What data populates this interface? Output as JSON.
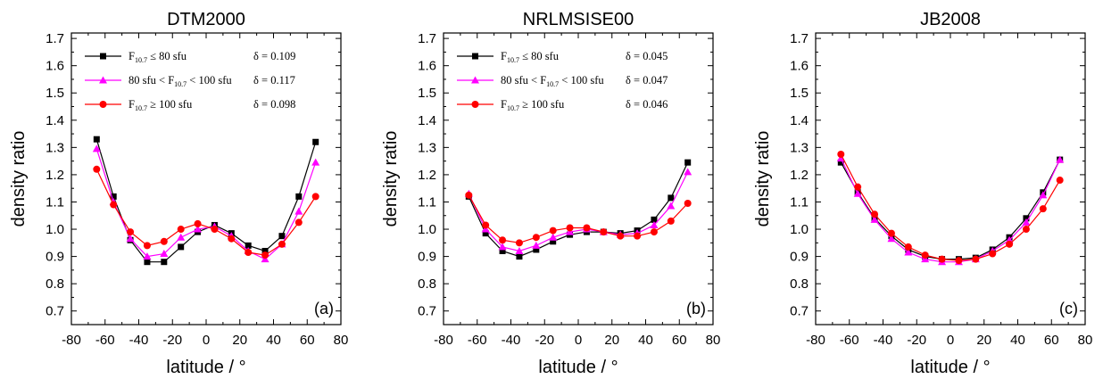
{
  "chart_data": [
    {
      "type": "line",
      "title": "DTM2000",
      "panel_label": "(a)",
      "xlabel": "latitude / °",
      "ylabel": "density ratio",
      "xlim": [
        -80,
        80
      ],
      "ylim": [
        0.65,
        1.72
      ],
      "xticks": [
        -80,
        -60,
        -40,
        -20,
        0,
        20,
        40,
        60,
        80
      ],
      "yticks": [
        0.7,
        0.8,
        0.9,
        1.0,
        1.1,
        1.2,
        1.3,
        1.4,
        1.5,
        1.6,
        1.7
      ],
      "x": [
        -65,
        -55,
        -45,
        -35,
        -25,
        -15,
        -5,
        5,
        15,
        25,
        35,
        45,
        55,
        65
      ],
      "series": [
        {
          "label_parts": [
            "F",
            "10.7",
            " ≤ 80 sfu"
          ],
          "delta": "δ = 0.109",
          "color": "#000000",
          "marker": "square",
          "values": [
            1.33,
            1.12,
            0.96,
            0.88,
            0.88,
            0.935,
            0.99,
            1.015,
            0.985,
            0.94,
            0.92,
            0.975,
            1.12,
            1.32
          ]
        },
        {
          "label_parts": [
            "80 sfu < F",
            "10.7",
            " < 100 sfu"
          ],
          "delta": "δ = 0.117",
          "color": "#ff00ff",
          "marker": "triangle",
          "values": [
            1.295,
            1.1,
            0.965,
            0.9,
            0.91,
            0.97,
            1.0,
            1.01,
            0.975,
            0.92,
            0.89,
            0.945,
            1.065,
            1.245
          ]
        },
        {
          "label_parts": [
            "F",
            "10.7",
            " ≥ 100 sfu"
          ],
          "delta": "δ = 0.098",
          "color": "#ff0000",
          "marker": "circle",
          "values": [
            1.22,
            1.09,
            0.99,
            0.94,
            0.955,
            1.0,
            1.02,
            1.0,
            0.965,
            0.915,
            0.905,
            0.945,
            1.025,
            1.12
          ]
        }
      ]
    },
    {
      "type": "line",
      "title": "NRLMSISE00",
      "panel_label": "(b)",
      "xlabel": "latitude / °",
      "ylabel": "density ratio",
      "xlim": [
        -80,
        80
      ],
      "ylim": [
        0.65,
        1.72
      ],
      "xticks": [
        -80,
        -60,
        -40,
        -20,
        0,
        20,
        40,
        60,
        80
      ],
      "yticks": [
        0.7,
        0.8,
        0.9,
        1.0,
        1.1,
        1.2,
        1.3,
        1.4,
        1.5,
        1.6,
        1.7
      ],
      "x": [
        -65,
        -55,
        -45,
        -35,
        -25,
        -15,
        -5,
        5,
        15,
        25,
        35,
        45,
        55,
        65
      ],
      "series": [
        {
          "label_parts": [
            "F",
            "10.7",
            " ≤ 80 sfu"
          ],
          "delta": "δ = 0.045",
          "color": "#000000",
          "marker": "square",
          "values": [
            1.12,
            0.985,
            0.92,
            0.9,
            0.925,
            0.955,
            0.98,
            0.99,
            0.99,
            0.985,
            0.995,
            1.035,
            1.115,
            1.245
          ]
        },
        {
          "label_parts": [
            "80 sfu < F",
            "10.7",
            " < 100 sfu"
          ],
          "delta": "δ = 0.047",
          "color": "#ff00ff",
          "marker": "triangle",
          "values": [
            1.13,
            1.0,
            0.935,
            0.92,
            0.94,
            0.97,
            0.99,
            1.0,
            0.99,
            0.98,
            0.985,
            1.015,
            1.085,
            1.21
          ]
        },
        {
          "label_parts": [
            "F",
            "10.7",
            " ≥ 100 sfu"
          ],
          "delta": "δ = 0.046",
          "color": "#ff0000",
          "marker": "circle",
          "values": [
            1.125,
            1.015,
            0.96,
            0.95,
            0.97,
            0.995,
            1.005,
            1.005,
            0.99,
            0.975,
            0.975,
            0.99,
            1.03,
            1.095
          ]
        }
      ]
    },
    {
      "type": "line",
      "title": "JB2008",
      "panel_label": "(c)",
      "xlabel": "latitude / °",
      "ylabel": "density ratio",
      "xlim": [
        -80,
        80
      ],
      "ylim": [
        0.65,
        1.72
      ],
      "xticks": [
        -80,
        -60,
        -40,
        -20,
        0,
        20,
        40,
        60,
        80
      ],
      "yticks": [
        0.7,
        0.8,
        0.9,
        1.0,
        1.1,
        1.2,
        1.3,
        1.4,
        1.5,
        1.6,
        1.7
      ],
      "x": [
        -65,
        -55,
        -45,
        -35,
        -25,
        -15,
        -5,
        5,
        15,
        25,
        35,
        45,
        55,
        65
      ],
      "series": [
        {
          "color": "#000000",
          "marker": "square",
          "values": [
            1.245,
            1.135,
            1.04,
            0.975,
            0.925,
            0.9,
            0.89,
            0.89,
            0.895,
            0.925,
            0.97,
            1.04,
            1.135,
            1.255
          ]
        },
        {
          "color": "#ff00ff",
          "marker": "triangle",
          "values": [
            1.26,
            1.13,
            1.035,
            0.965,
            0.915,
            0.89,
            0.88,
            0.88,
            0.89,
            0.92,
            0.96,
            1.025,
            1.125,
            1.255
          ]
        },
        {
          "color": "#ff0000",
          "marker": "circle",
          "values": [
            1.275,
            1.155,
            1.055,
            0.985,
            0.935,
            0.905,
            0.89,
            0.885,
            0.89,
            0.91,
            0.945,
            1.0,
            1.075,
            1.18
          ]
        }
      ]
    }
  ]
}
